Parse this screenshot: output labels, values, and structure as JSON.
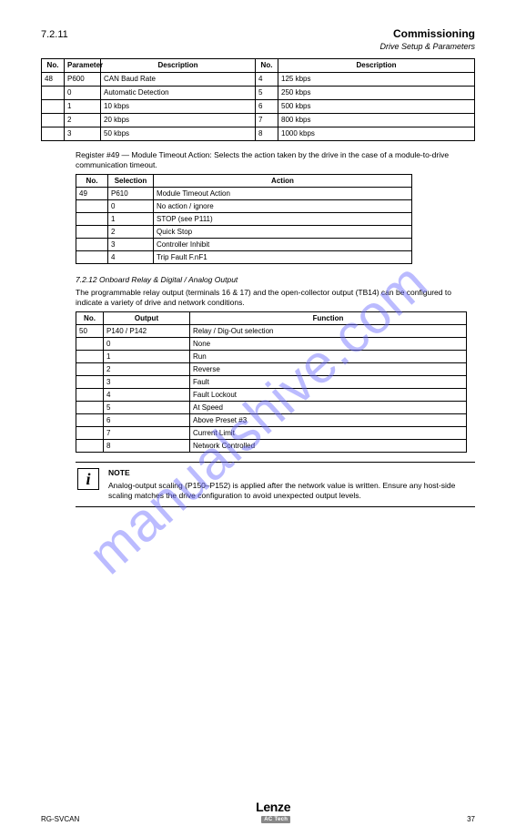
{
  "header": {
    "toc_num": "7.2.11",
    "title": "Commissioning",
    "subtitle": "Drive Setup & Parameters"
  },
  "reg_table": {
    "columns": [
      "No.",
      "Parameter",
      "Description",
      "No.",
      "Description"
    ],
    "rows": [
      [
        "48",
        "P600",
        "CAN Baud Rate",
        "4",
        "125 kbps"
      ],
      [
        "",
        "0",
        "Automatic Detection",
        "5",
        "250 kbps"
      ],
      [
        "",
        "1",
        "10 kbps",
        "6",
        "500 kbps"
      ],
      [
        "",
        "2",
        "20 kbps",
        "7",
        "800 kbps"
      ],
      [
        "",
        "3",
        "50 kbps",
        "8",
        "1000 kbps"
      ]
    ]
  },
  "section": {
    "intro": "Register #49 — Module Timeout Action: Selects the action taken by the drive in the case of a module-to-drive communication timeout.",
    "inner_table": {
      "columns": [
        "No.",
        "Selection",
        "Action"
      ],
      "rows": [
        [
          "49",
          "P610",
          "Module Timeout Action"
        ],
        [
          "",
          "0",
          "No action / ignore"
        ],
        [
          "",
          "1",
          "STOP (see P111)"
        ],
        [
          "",
          "2",
          "Quick Stop"
        ],
        [
          "",
          "3",
          "Controller Inhibit"
        ],
        [
          "",
          "4",
          "Trip Fault F.nF1"
        ]
      ]
    }
  },
  "section2": {
    "heading": "7.2.12  Onboard Relay & Digital / Analog Output",
    "intro": "The programmable relay output (terminals 16 & 17) and the open-collector output (TB14) can be configured to indicate a variety of drive and network conditions.",
    "table": {
      "columns": [
        "No.",
        "Output",
        "Function"
      ],
      "rows": [
        [
          "50",
          "P140 / P142",
          "Relay / Dig-Out selection"
        ],
        [
          "",
          "0",
          "None"
        ],
        [
          "",
          "1",
          "Run"
        ],
        [
          "",
          "2",
          "Reverse"
        ],
        [
          "",
          "3",
          "Fault"
        ],
        [
          "",
          "4",
          "Fault Lockout"
        ],
        [
          "",
          "5",
          "At Speed"
        ],
        [
          "",
          "6",
          "Above Preset #3"
        ],
        [
          "",
          "7",
          "Current Limit"
        ],
        [
          "",
          "8",
          "Network Controlled"
        ]
      ]
    }
  },
  "note": {
    "icon": "i",
    "title": "NOTE",
    "text": "Analog-output scaling (P150–P152) is applied after the network value is written. Ensure any host-side scaling matches the drive configuration to avoid unexpected output levels."
  },
  "footer": {
    "doc": "RG-SVCAN",
    "page": "37",
    "logo_main": "Lenze",
    "logo_sub": "AC Tech"
  },
  "watermark": "manualshive.com",
  "colors": {
    "watermark": "#6b6bff",
    "border": "#000000",
    "bg": "#ffffff"
  }
}
